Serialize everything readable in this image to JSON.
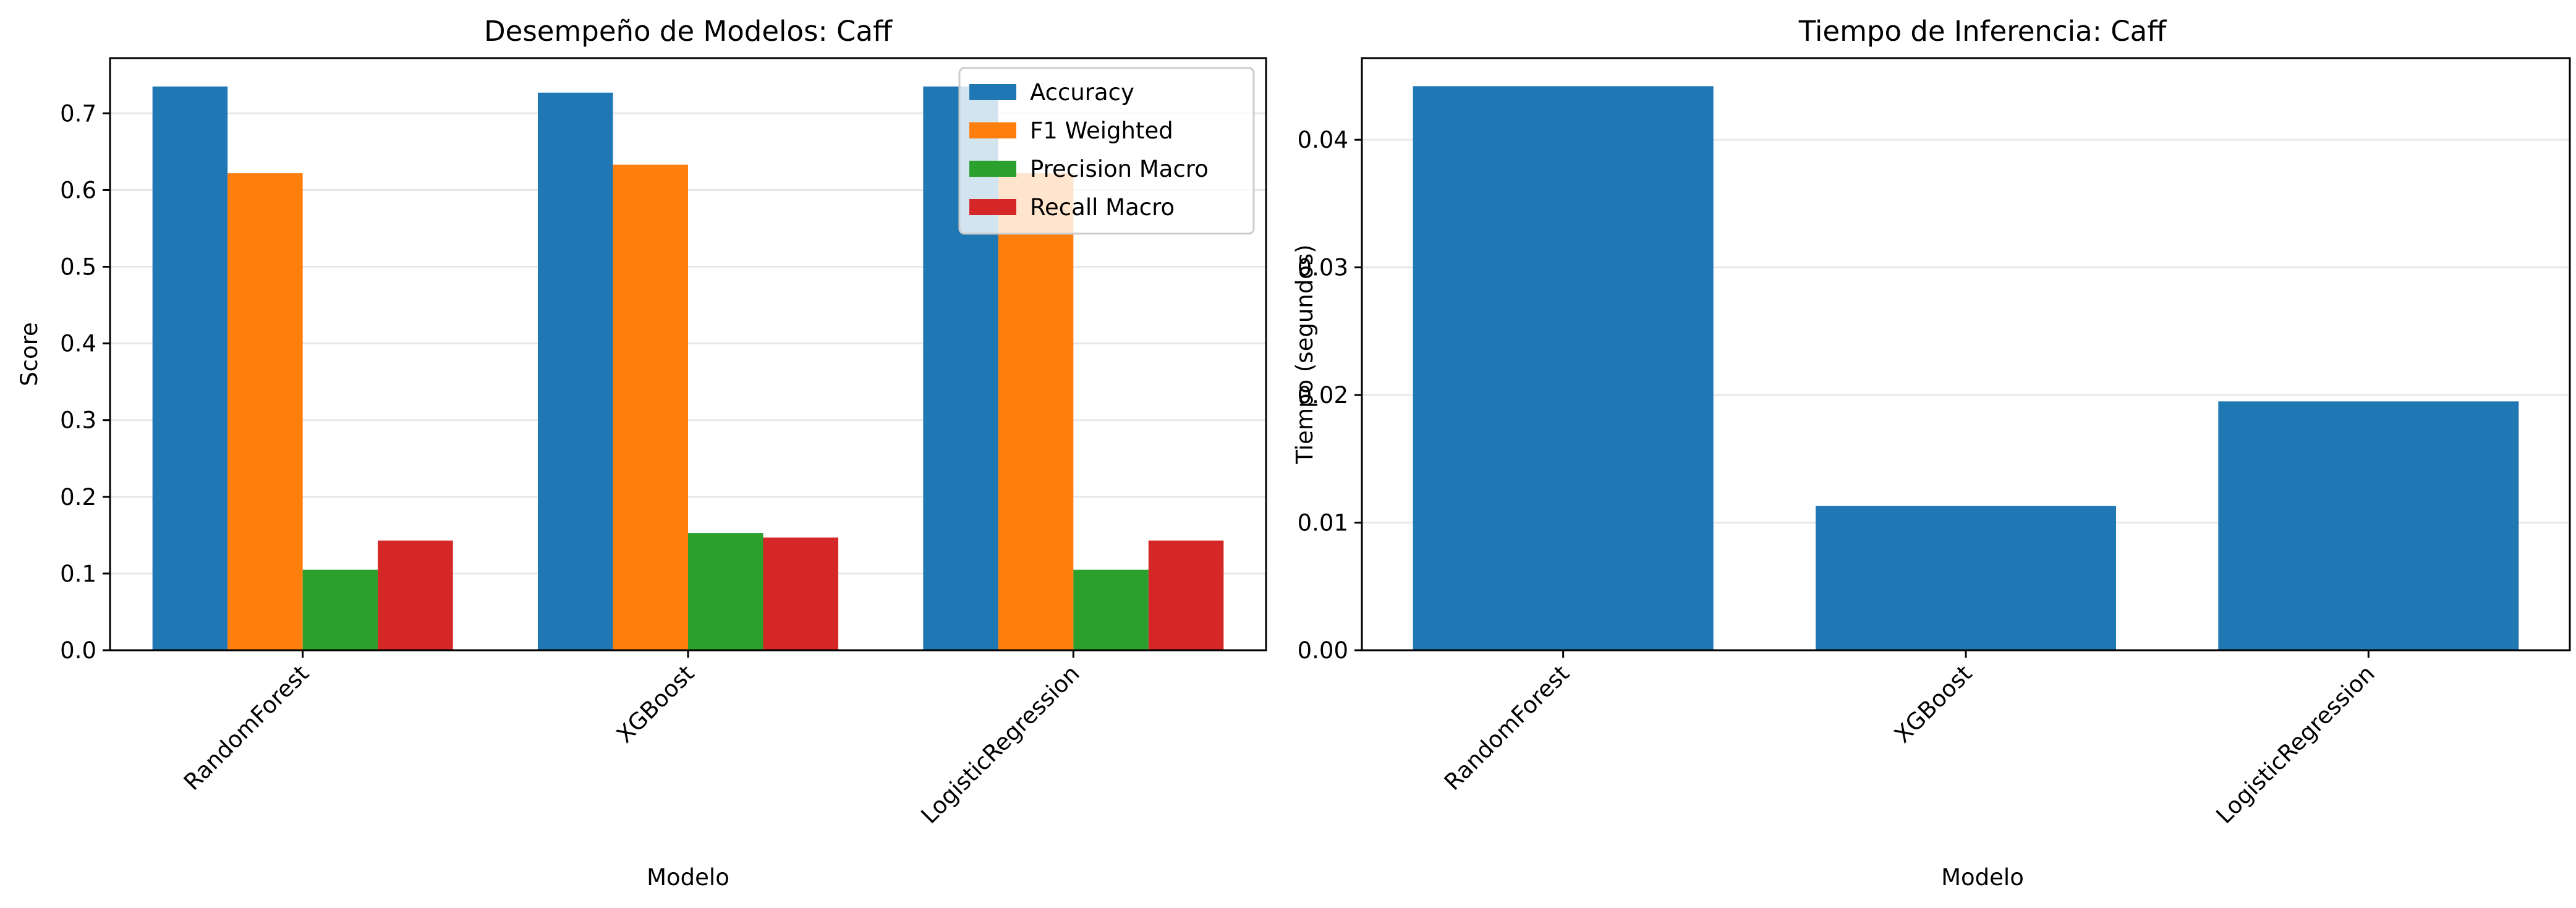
{
  "chart_data": [
    {
      "type": "bar",
      "title": "Desempeño de Modelos: Caff",
      "xlabel": "Modelo",
      "ylabel": "Score",
      "categories": [
        "RandomForest",
        "XGBoost",
        "LogisticRegression"
      ],
      "series": [
        {
          "name": "Accuracy",
          "color": "#1f77b4",
          "values": [
            0.735,
            0.727,
            0.735
          ]
        },
        {
          "name": "F1 Weighted",
          "color": "#ff7f0e",
          "values": [
            0.622,
            0.633,
            0.622
          ]
        },
        {
          "name": "Precision Macro",
          "color": "#2ca02c",
          "values": [
            0.105,
            0.153,
            0.105
          ]
        },
        {
          "name": "Recall Macro",
          "color": "#d62728",
          "values": [
            0.143,
            0.147,
            0.143
          ]
        }
      ],
      "ylim": [
        0,
        0.772
      ],
      "yticks": [
        "0.0",
        "0.1",
        "0.2",
        "0.3",
        "0.4",
        "0.5",
        "0.6",
        "0.7"
      ],
      "grid": "y",
      "legend": "top-right"
    },
    {
      "type": "bar",
      "title": "Tiempo de Inferencia: Caff",
      "xlabel": "Modelo",
      "ylabel": "Tiempo (segundos)",
      "categories": [
        "RandomForest",
        "XGBoost",
        "LogisticRegression"
      ],
      "series": [
        {
          "color": "#1f77b4",
          "values": [
            0.0442,
            0.0113,
            0.0195
          ]
        }
      ],
      "ylim": [
        0,
        0.0464
      ],
      "yticks": [
        "0.00",
        "0.01",
        "0.02",
        "0.03",
        "0.04"
      ],
      "grid": "y"
    }
  ]
}
